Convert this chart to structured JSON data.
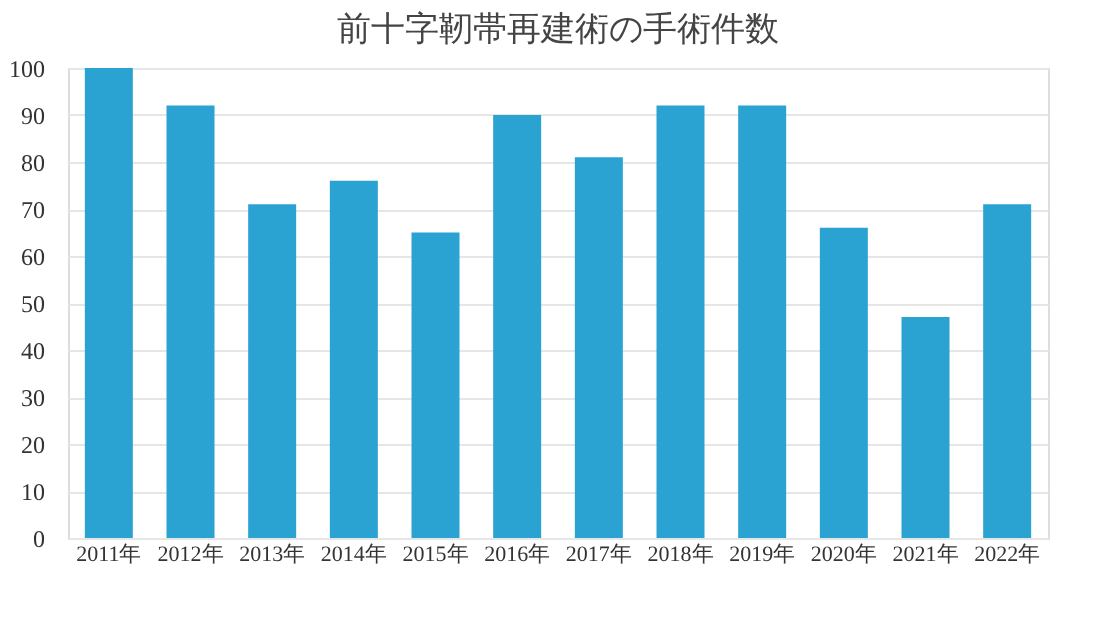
{
  "chart_data": {
    "type": "bar",
    "title": "前十字靭帯再建術の手術件数",
    "categories": [
      "2011年",
      "2012年",
      "2013年",
      "2014年",
      "2015年",
      "2016年",
      "2017年",
      "2018年",
      "2019年",
      "2020年",
      "2021年",
      "2022年"
    ],
    "values": [
      100,
      92,
      71,
      76,
      65,
      90,
      81,
      92,
      92,
      66,
      47,
      71
    ],
    "color": "#2aa3d3",
    "ylim": [
      0,
      100
    ],
    "yticks": [
      0,
      10,
      20,
      30,
      40,
      50,
      60,
      70,
      80,
      90,
      100
    ],
    "grid": "y"
  }
}
